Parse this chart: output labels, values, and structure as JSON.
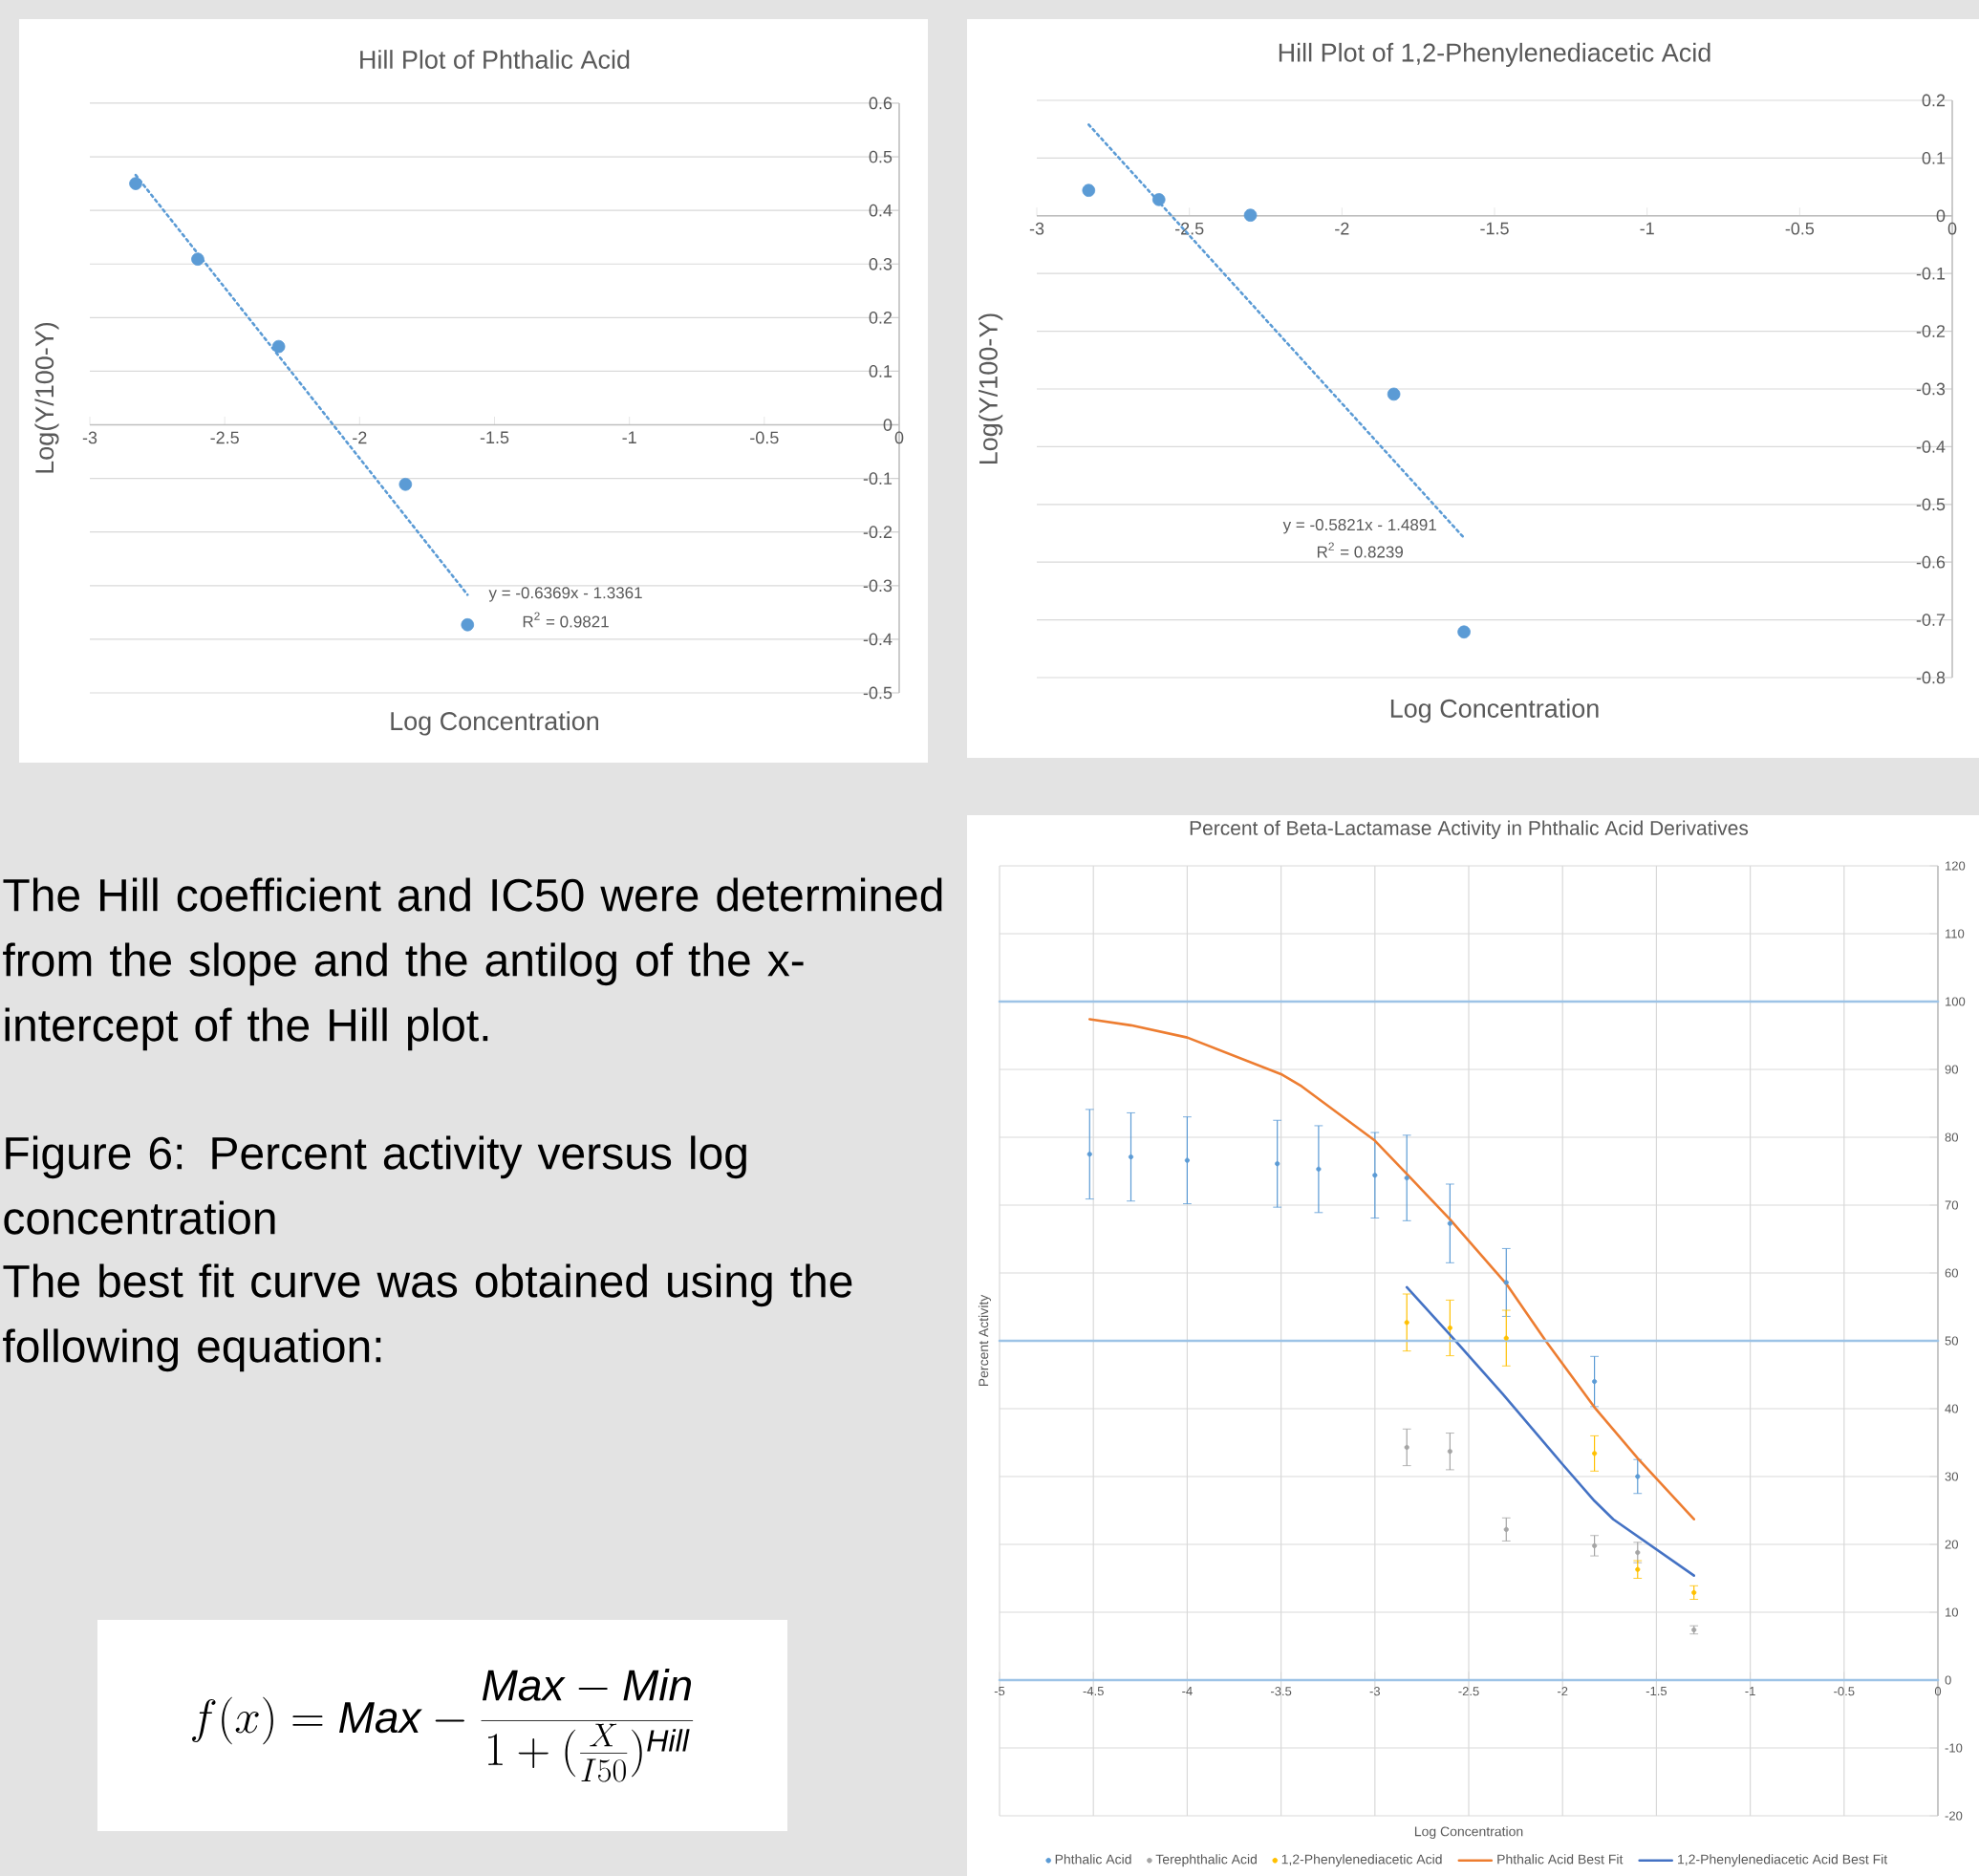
{
  "chart_data": [
    {
      "type": "scatter",
      "title": "Hill Plot of Phthalic Acid",
      "xlabel": "Log Concentration",
      "ylabel": "Log(Y/100-Y)",
      "xlim": [
        -3,
        0
      ],
      "ylim": [
        -0.5,
        0.6
      ],
      "xticks": [
        -3,
        -2.5,
        -2,
        -1.5,
        -1,
        -0.5,
        0
      ],
      "yticks": [
        -0.5,
        -0.4,
        -0.3,
        -0.2,
        -0.1,
        0,
        0.1,
        0.2,
        0.3,
        0.4,
        0.5,
        0.6
      ],
      "grid": "y",
      "marker": "circle",
      "series": [
        {
          "color": "#5b9bd5",
          "x": [
            -2.83,
            -2.6,
            -2.3,
            -1.83,
            -1.6
          ],
          "values": [
            0.45,
            0.309,
            0.146,
            -0.111,
            -0.373
          ]
        },
        {
          "type": "line",
          "line_style": "dotted",
          "marker": "none",
          "color": "#5b9bd5",
          "x": [
            -2.83,
            -1.6
          ],
          "values": [
            0.466,
            -0.317
          ]
        }
      ],
      "annotations": [
        "y = -0.6369x - 1.3361",
        "R$^{2}$ = 0.9821"
      ]
    },
    {
      "type": "scatter",
      "title": "Hill Plot of 1,2-Phenylenediacetic Acid",
      "xlabel": "Log Concentration",
      "ylabel": "Log(Y/100-Y)",
      "xlim": [
        -3,
        0
      ],
      "ylim": [
        -0.8,
        0.2
      ],
      "xticks": [
        -3,
        -2.5,
        -2,
        -1.5,
        -1,
        -0.5,
        0
      ],
      "yticks": [
        -0.8,
        -0.7,
        -0.6,
        -0.5,
        -0.4,
        -0.3,
        -0.2,
        -0.1,
        0,
        0.1,
        0.2
      ],
      "grid": "y",
      "marker": "circle",
      "series": [
        {
          "color": "#5b9bd5",
          "x": [
            -2.83,
            -2.6,
            -2.3,
            -1.83,
            -1.6
          ],
          "values": [
            0.044,
            0.028,
            0.001,
            -0.309,
            -0.721
          ]
        },
        {
          "type": "line",
          "line_style": "dotted",
          "marker": "none",
          "color": "#5b9bd5",
          "x": [
            -2.83,
            -1.6
          ],
          "values": [
            0.158,
            -0.558
          ]
        }
      ],
      "annotations": [
        "y = -0.5821x - 1.4891",
        "R$^{2}$ = 0.8239"
      ]
    },
    {
      "type": "other",
      "annotations": [
        "The Hill coefficient and IC50 were determined from the slope and the antilog of the x-intercept of the Hill plot.",
        "Figure 6:  Percent activity versus log concentration",
        "The best fit curve was obtained using the following equation:",
        "f(x) = \\mathit{Max} - \\frac{\\mathit{Max} - \\mathit{Min}}{1 + (\\frac{X}{I50})^{\\mathit{Hill}}}"
      ]
    },
    {
      "type": "scatter",
      "title": "Percent of Beta-Lactamase Activity in Phthalic Acid Derivatives",
      "xlabel": "Log Concentration",
      "ylabel": "Percent Activity",
      "xlim": [
        -5,
        0
      ],
      "ylim": [
        -20,
        120
      ],
      "xticks": [
        -5,
        -4.5,
        -4,
        -3.5,
        -3,
        -2.5,
        -2,
        -1.5,
        -1,
        -0.5,
        0
      ],
      "yticks": [
        -20,
        -10,
        0,
        10,
        20,
        30,
        40,
        50,
        60,
        70,
        80,
        90,
        100,
        110,
        120
      ],
      "grid": true,
      "marker": "circle",
      "legend": "bottom",
      "series": [
        {
          "name": "Phthalic Acid",
          "color": "#5b9bd5",
          "x": [
            -4.52,
            -4.3,
            -4.0,
            -3.52,
            -3.3,
            -3.0,
            -2.83,
            -2.6,
            -2.3,
            -1.83,
            -1.6
          ],
          "values": [
            77.5,
            77.1,
            76.6,
            76.1,
            75.3,
            74.4,
            74.0,
            67.3,
            58.6,
            44.0,
            30.0
          ],
          "errors": [
            6.6,
            6.5,
            6.4,
            6.4,
            6.4,
            6.3,
            6.3,
            5.8,
            5.0,
            3.7,
            2.5
          ]
        },
        {
          "name": "Terephthalic Acid",
          "color": "#a5a5a5",
          "x": [
            -2.83,
            -2.6,
            -2.3,
            -1.83,
            -1.6,
            -1.3
          ],
          "values": [
            34.3,
            33.7,
            22.2,
            19.8,
            18.8,
            7.4
          ],
          "errors": [
            2.7,
            2.7,
            1.7,
            1.5,
            1.5,
            0.6
          ]
        },
        {
          "name": "1,2-Phenylenediacetic Acid",
          "color": "#ffc000",
          "x": [
            -2.83,
            -2.6,
            -2.3,
            -1.83,
            -1.6,
            -1.3
          ],
          "values": [
            52.7,
            51.9,
            50.4,
            33.4,
            16.3,
            12.9
          ],
          "errors": [
            4.2,
            4.1,
            4.1,
            2.6,
            1.3,
            1.0
          ]
        },
        {
          "name": "Phthalic Acid Best Fit",
          "type": "line",
          "marker": "none",
          "color": "#ed7d31",
          "x": [
            -4.52,
            -4.3,
            -4.0,
            -3.5,
            -3.39,
            -3.0,
            -2.83,
            -2.6,
            -2.3,
            -2.09,
            -1.83,
            -1.6,
            -1.3
          ],
          "values": [
            97.4,
            96.5,
            94.7,
            89.3,
            87.5,
            79.5,
            74.6,
            67.9,
            58.4,
            50.0,
            40.2,
            32.7,
            23.7
          ]
        },
        {
          "name": "1,2-Phenylenediacetic Acid Best Fit",
          "type": "line",
          "marker": "none",
          "color": "#4472c4",
          "x": [
            -2.83,
            -2.6,
            -2.32,
            -2.0,
            -1.83,
            -1.73,
            -1.3
          ],
          "values": [
            57.9,
            50.9,
            42.2,
            31.8,
            26.4,
            23.7,
            15.4
          ]
        },
        {
          "type": "line",
          "marker": "none",
          "color": "#9dc3e6",
          "x": [
            -5,
            0
          ],
          "values": [
            100,
            100
          ]
        },
        {
          "type": "line",
          "marker": "none",
          "color": "#9dc3e6",
          "x": [
            -5,
            0
          ],
          "values": [
            50,
            50
          ]
        },
        {
          "type": "line",
          "marker": "none",
          "color": "#9dc3e6",
          "x": [
            -5,
            0
          ],
          "values": [
            0,
            0
          ]
        }
      ]
    }
  ]
}
